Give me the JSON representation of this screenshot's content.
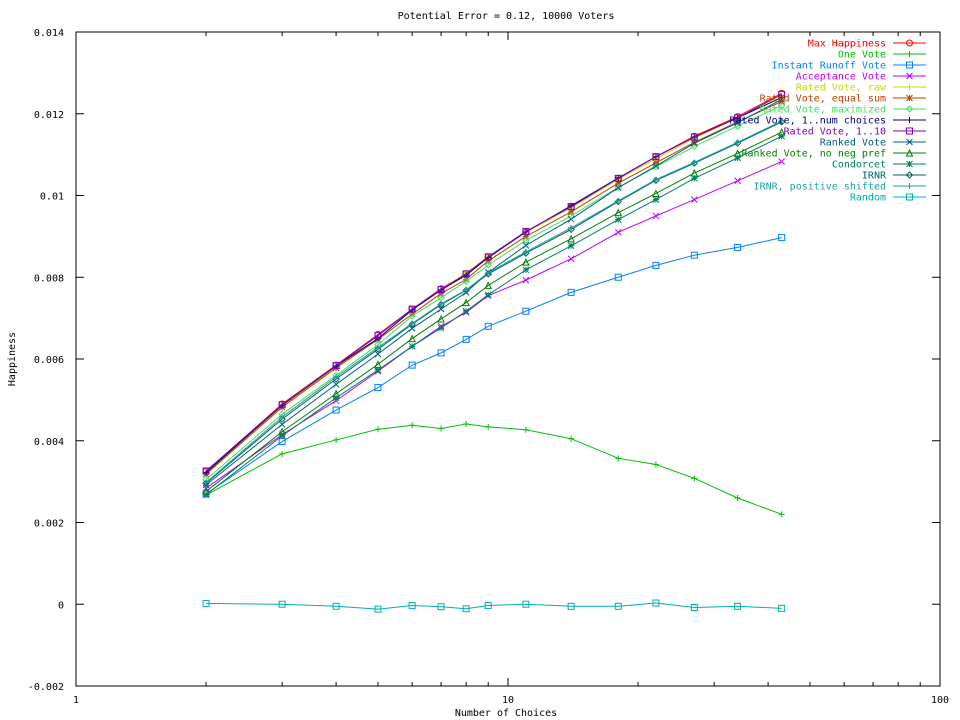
{
  "chart_data": {
    "type": "line",
    "title": "Potential Error = 0.12, 10000 Voters",
    "xlabel": "Number of Choices",
    "ylabel": "Happiness",
    "xscale": "log",
    "xlim": [
      1,
      100
    ],
    "ylim": [
      -0.002,
      0.014
    ],
    "xticks": [
      1,
      10,
      100
    ],
    "xtick_labels": [
      "1",
      "10",
      "100"
    ],
    "yticks": [
      -0.002,
      0,
      0.002,
      0.004,
      0.006,
      0.008,
      0.01,
      0.012,
      0.014
    ],
    "ytick_labels": [
      "-0.002",
      "0",
      "0.002",
      "0.004",
      "0.006",
      "0.008",
      "0.01",
      "0.012",
      "0.014"
    ],
    "grid": false,
    "legend_position": "top-right",
    "x": [
      2,
      3,
      4,
      5,
      6,
      7,
      8,
      9,
      11,
      14,
      18,
      22,
      27,
      34,
      43
    ],
    "series": [
      {
        "name": "Max Happiness",
        "color": "#ff0000",
        "marker": "circle",
        "values": [
          0.00325,
          0.0049,
          0.00585,
          0.0066,
          0.00722,
          0.00772,
          0.00809,
          0.0085,
          0.0091,
          0.00972,
          0.01042,
          0.01095,
          0.01145,
          0.01193,
          0.0125
        ]
      },
      {
        "name": "One Vote",
        "color": "#00c000",
        "marker": "plus",
        "values": [
          0.00267,
          0.00368,
          0.00402,
          0.00428,
          0.00438,
          0.0043,
          0.00441,
          0.00434,
          0.00427,
          0.00405,
          0.00357,
          0.00342,
          0.00308,
          0.0026,
          0.0022
        ]
      },
      {
        "name": "Instant Runoff Vote",
        "color": "#0080ff",
        "marker": "square",
        "values": [
          0.0027,
          0.00398,
          0.00475,
          0.0053,
          0.00585,
          0.00615,
          0.00648,
          0.0068,
          0.00717,
          0.00763,
          0.008,
          0.00829,
          0.00854,
          0.00873,
          0.00897
        ]
      },
      {
        "name": "Acceptance Vote",
        "color": "#c000ff",
        "marker": "x",
        "values": [
          0.00284,
          0.00415,
          0.00498,
          0.0057,
          0.00631,
          0.0068,
          0.00714,
          0.00755,
          0.00793,
          0.00845,
          0.0091,
          0.0095,
          0.0099,
          0.01036,
          0.01083
        ]
      },
      {
        "name": "Rated Vote, raw",
        "color": "#c0e000",
        "marker": "plus",
        "values": [
          0.0032,
          0.00485,
          0.0058,
          0.0065,
          0.0072,
          0.0077,
          0.00811,
          0.00851,
          0.0091,
          0.0097,
          0.0104,
          0.0109,
          0.0114,
          0.0119,
          0.0124
        ]
      },
      {
        "name": "Rated Vote, equal sum",
        "color": "#c04000",
        "marker": "asterisk",
        "values": [
          0.00318,
          0.00482,
          0.00578,
          0.00648,
          0.0071,
          0.0076,
          0.00795,
          0.0084,
          0.009,
          0.0096,
          0.0103,
          0.0108,
          0.0113,
          0.0118,
          0.0123
        ]
      },
      {
        "name": "Rated Vote, maximized",
        "color": "#40e060",
        "marker": "diamond",
        "values": [
          0.00305,
          0.00465,
          0.0056,
          0.00635,
          0.00705,
          0.0075,
          0.0079,
          0.0083,
          0.0089,
          0.0095,
          0.0102,
          0.0107,
          0.0112,
          0.0117,
          0.0122
        ]
      },
      {
        "name": "Rated Vote, 1..num choices",
        "color": "#000080",
        "marker": "plus",
        "values": [
          0.00322,
          0.00487,
          0.00583,
          0.0065,
          0.0072,
          0.00769,
          0.00805,
          0.00848,
          0.00911,
          0.00975,
          0.01043,
          0.01095,
          0.01143,
          0.0119,
          0.0124
        ]
      },
      {
        "name": "Rated Vote, 1..10",
        "color": "#8000c0",
        "marker": "square",
        "values": [
          0.00326,
          0.00488,
          0.00584,
          0.00657,
          0.00722,
          0.0077,
          0.00808,
          0.0085,
          0.00912,
          0.00973,
          0.01042,
          0.01095,
          0.01143,
          0.0119,
          0.01247
        ]
      },
      {
        "name": "Ranked Vote",
        "color": "#006080",
        "marker": "x",
        "values": [
          0.00292,
          0.0044,
          0.00538,
          0.00612,
          0.00675,
          0.00722,
          0.00763,
          0.00812,
          0.00878,
          0.00942,
          0.01019,
          0.01072,
          0.01128,
          0.01178,
          0.01235
        ]
      },
      {
        "name": "Ranked Vote, no neg pref",
        "color": "#008000",
        "marker": "triangle",
        "values": [
          0.00276,
          0.00422,
          0.00515,
          0.00587,
          0.0065,
          0.00698,
          0.00738,
          0.0078,
          0.00837,
          0.00894,
          0.00958,
          0.01005,
          0.01055,
          0.01103,
          0.01155
        ]
      },
      {
        "name": "Condorcet",
        "color": "#008060",
        "marker": "asterisk",
        "values": [
          0.00268,
          0.00412,
          0.00505,
          0.00573,
          0.00631,
          0.00676,
          0.00717,
          0.00757,
          0.00818,
          0.00877,
          0.00941,
          0.0099,
          0.01042,
          0.01092,
          0.01145
        ]
      },
      {
        "name": "IRNR",
        "color": "#006060",
        "marker": "diamond",
        "values": [
          0.00296,
          0.00453,
          0.00551,
          0.00624,
          0.00685,
          0.00733,
          0.00768,
          0.00808,
          0.00859,
          0.00917,
          0.00985,
          0.01037,
          0.01079,
          0.01128,
          0.0118
        ]
      },
      {
        "name": "IRNR, positive shifted",
        "color": "#20a0a0",
        "marker": "plus",
        "values": [
          0.00298,
          0.00458,
          0.00556,
          0.00628,
          0.00687,
          0.00735,
          0.00769,
          0.00811,
          0.00862,
          0.00921,
          0.00987,
          0.01039,
          0.01081,
          0.0113,
          0.01182
        ]
      },
      {
        "name": "Random",
        "color": "#00b0b0",
        "marker": "square",
        "values": [
          2e-05,
          0.0,
          -5e-05,
          -0.00012,
          -3e-05,
          -6e-05,
          -0.00011,
          -3e-05,
          0.0,
          -5e-05,
          -5e-05,
          3e-05,
          -8e-05,
          -5e-05,
          -0.0001
        ]
      }
    ]
  }
}
